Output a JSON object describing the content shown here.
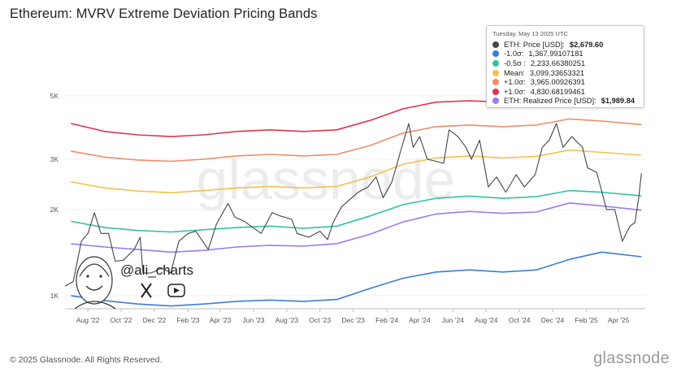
{
  "title": "Ethereum: MVRV Extreme Deviation Pricing Bands",
  "footer": "© 2025 Glassnode. All Rights Reserved.",
  "brand": "glassnode",
  "watermark": "glassnode",
  "handle": "@ali_charts",
  "legend": [
    {
      "label": "ETH: Price [USD]",
      "color": "#444444"
    },
    {
      "label": "-1.0σ",
      "color": "#3b7dd8"
    },
    {
      "label": "-0.5σ",
      "color": "#2ec4a0"
    },
    {
      "label": "Mean",
      "color": "#f2c14e"
    },
    {
      "label": "+1.0σ",
      "color": "#f28b65"
    },
    {
      "label": "+1.0σ",
      "color": "#e0344f"
    },
    {
      "label": "ETH: Realized Price [USD]",
      "color": "#9b7cf0"
    }
  ],
  "tooltip": {
    "date": "Tuesday, May 13 2025 UTC",
    "rows": [
      {
        "label": "ETH: Price [USD]:",
        "value": "$2,679.60",
        "bold": true,
        "color": "#444444"
      },
      {
        "label": "-1.0σ:",
        "value": "1,367.99107181",
        "bold": false,
        "color": "#3b7dd8"
      },
      {
        "label": "-0.5σ :",
        "value": "2,233.66380251",
        "bold": false,
        "color": "#2ec4a0"
      },
      {
        "label": "Mean:",
        "value": "3,099.33653321",
        "bold": false,
        "color": "#f2c14e"
      },
      {
        "label": "+1.0σ:",
        "value": "3,965.00926391",
        "bold": false,
        "color": "#f28b65"
      },
      {
        "label": "+1.0σ:",
        "value": "4,830.68199461",
        "bold": false,
        "color": "#e0344f"
      },
      {
        "label": "ETH: Realized Price [USD]:",
        "value": "$1,989.84",
        "bold": true,
        "color": "#9b7cf0"
      }
    ]
  },
  "chart_data": {
    "type": "line",
    "title": "Ethereum: MVRV Extreme Deviation Pricing Bands",
    "y_scale": "log",
    "ylim": [
      900,
      6000
    ],
    "y_ticks": [
      {
        "value": 1000,
        "label": "1K"
      },
      {
        "value": 2000,
        "label": "2K"
      },
      {
        "value": 3000,
        "label": "3K"
      },
      {
        "value": 5000,
        "label": "5K"
      }
    ],
    "x_range": [
      "2022-06-20",
      "2025-05-20"
    ],
    "x_ticks": [
      {
        "date": "2022-08-01",
        "label": "Aug '22"
      },
      {
        "date": "2022-10-01",
        "label": "Oct '22"
      },
      {
        "date": "2022-12-01",
        "label": "Dec '22"
      },
      {
        "date": "2023-02-01",
        "label": "Feb '23"
      },
      {
        "date": "2023-04-01",
        "label": "Apr '23"
      },
      {
        "date": "2023-06-01",
        "label": "Jun '23"
      },
      {
        "date": "2023-08-01",
        "label": "Aug '23"
      },
      {
        "date": "2023-10-01",
        "label": "Oct '23"
      },
      {
        "date": "2023-12-01",
        "label": "Dec '23"
      },
      {
        "date": "2024-02-01",
        "label": "Feb '24"
      },
      {
        "date": "2024-04-01",
        "label": "Apr '24"
      },
      {
        "date": "2024-06-01",
        "label": "Jun '24"
      },
      {
        "date": "2024-08-01",
        "label": "Aug '24"
      },
      {
        "date": "2024-10-01",
        "label": "Oct '24"
      },
      {
        "date": "2024-12-01",
        "label": "Dec '24"
      },
      {
        "date": "2025-02-01",
        "label": "Feb '25"
      },
      {
        "date": "2025-04-01",
        "label": "Apr '25"
      }
    ],
    "series": [
      {
        "name": "+1.0σ",
        "color": "#e0344f",
        "points": [
          [
            "2022-07-01",
            4000
          ],
          [
            "2022-09-01",
            3750
          ],
          [
            "2022-11-01",
            3650
          ],
          [
            "2023-01-01",
            3600
          ],
          [
            "2023-03-01",
            3650
          ],
          [
            "2023-05-01",
            3750
          ],
          [
            "2023-07-01",
            3800
          ],
          [
            "2023-09-01",
            3750
          ],
          [
            "2023-11-01",
            3800
          ],
          [
            "2024-01-01",
            4100
          ],
          [
            "2024-03-01",
            4500
          ],
          [
            "2024-05-01",
            4750
          ],
          [
            "2024-07-01",
            4800
          ],
          [
            "2024-09-01",
            4750
          ],
          [
            "2024-11-01",
            4800
          ],
          [
            "2025-01-01",
            5050
          ],
          [
            "2025-03-01",
            4950
          ],
          [
            "2025-05-13",
            4830
          ]
        ]
      },
      {
        "name": "+1.0σ",
        "color": "#f28b65",
        "points": [
          [
            "2022-07-01",
            3200
          ],
          [
            "2022-09-01",
            3050
          ],
          [
            "2022-11-01",
            2980
          ],
          [
            "2023-01-01",
            2950
          ],
          [
            "2023-03-01",
            3000
          ],
          [
            "2023-05-01",
            3080
          ],
          [
            "2023-07-01",
            3120
          ],
          [
            "2023-09-01",
            3080
          ],
          [
            "2023-11-01",
            3120
          ],
          [
            "2024-01-01",
            3350
          ],
          [
            "2024-03-01",
            3700
          ],
          [
            "2024-05-01",
            3900
          ],
          [
            "2024-07-01",
            3950
          ],
          [
            "2024-09-01",
            3900
          ],
          [
            "2024-11-01",
            3950
          ],
          [
            "2025-01-01",
            4150
          ],
          [
            "2025-03-01",
            4080
          ],
          [
            "2025-05-13",
            3965
          ]
        ]
      },
      {
        "name": "Mean",
        "color": "#f2c14e",
        "points": [
          [
            "2022-07-01",
            2500
          ],
          [
            "2022-09-01",
            2380
          ],
          [
            "2022-11-01",
            2320
          ],
          [
            "2023-01-01",
            2290
          ],
          [
            "2023-03-01",
            2330
          ],
          [
            "2023-05-01",
            2380
          ],
          [
            "2023-07-01",
            2410
          ],
          [
            "2023-09-01",
            2380
          ],
          [
            "2023-11-01",
            2410
          ],
          [
            "2024-01-01",
            2600
          ],
          [
            "2024-03-01",
            2880
          ],
          [
            "2024-05-01",
            3030
          ],
          [
            "2024-07-01",
            3080
          ],
          [
            "2024-09-01",
            3030
          ],
          [
            "2024-11-01",
            3070
          ],
          [
            "2025-01-01",
            3230
          ],
          [
            "2025-03-01",
            3170
          ],
          [
            "2025-05-13",
            3099
          ]
        ]
      },
      {
        "name": "-0.5σ",
        "color": "#2ec4a0",
        "points": [
          [
            "2022-07-01",
            1820
          ],
          [
            "2022-09-01",
            1730
          ],
          [
            "2022-11-01",
            1690
          ],
          [
            "2023-01-01",
            1670
          ],
          [
            "2023-03-01",
            1700
          ],
          [
            "2023-05-01",
            1730
          ],
          [
            "2023-07-01",
            1750
          ],
          [
            "2023-09-01",
            1720
          ],
          [
            "2023-11-01",
            1750
          ],
          [
            "2024-01-01",
            1900
          ],
          [
            "2024-03-01",
            2080
          ],
          [
            "2024-05-01",
            2190
          ],
          [
            "2024-07-01",
            2230
          ],
          [
            "2024-09-01",
            2190
          ],
          [
            "2024-11-01",
            2220
          ],
          [
            "2025-01-01",
            2330
          ],
          [
            "2025-03-01",
            2300
          ],
          [
            "2025-05-13",
            2234
          ]
        ]
      },
      {
        "name": "ETH: Realized Price [USD]",
        "color": "#9b7cf0",
        "points": [
          [
            "2022-07-01",
            1520
          ],
          [
            "2022-09-01",
            1480
          ],
          [
            "2022-11-01",
            1450
          ],
          [
            "2023-01-01",
            1420
          ],
          [
            "2023-03-01",
            1440
          ],
          [
            "2023-05-01",
            1480
          ],
          [
            "2023-07-01",
            1500
          ],
          [
            "2023-09-01",
            1490
          ],
          [
            "2023-11-01",
            1520
          ],
          [
            "2024-01-01",
            1640
          ],
          [
            "2024-03-01",
            1810
          ],
          [
            "2024-05-01",
            1930
          ],
          [
            "2024-07-01",
            1970
          ],
          [
            "2024-09-01",
            1940
          ],
          [
            "2024-11-01",
            1960
          ],
          [
            "2025-01-01",
            2110
          ],
          [
            "2025-03-01",
            2060
          ],
          [
            "2025-05-13",
            1990
          ]
        ]
      },
      {
        "name": "-1.0σ",
        "color": "#3b7dd8",
        "points": [
          [
            "2022-07-01",
            1000
          ],
          [
            "2022-09-01",
            960
          ],
          [
            "2022-11-01",
            935
          ],
          [
            "2023-01-01",
            920
          ],
          [
            "2023-03-01",
            935
          ],
          [
            "2023-05-01",
            955
          ],
          [
            "2023-07-01",
            965
          ],
          [
            "2023-09-01",
            955
          ],
          [
            "2023-11-01",
            970
          ],
          [
            "2024-01-01",
            1060
          ],
          [
            "2024-03-01",
            1150
          ],
          [
            "2024-05-01",
            1210
          ],
          [
            "2024-07-01",
            1230
          ],
          [
            "2024-09-01",
            1210
          ],
          [
            "2024-11-01",
            1230
          ],
          [
            "2025-01-01",
            1340
          ],
          [
            "2025-03-01",
            1420
          ],
          [
            "2025-05-13",
            1368
          ]
        ]
      },
      {
        "name": "ETH: Price [USD]",
        "color": "#444444",
        "points": [
          [
            "2022-06-20",
            1080
          ],
          [
            "2022-07-05",
            1120
          ],
          [
            "2022-07-20",
            1550
          ],
          [
            "2022-08-01",
            1650
          ],
          [
            "2022-08-13",
            1950
          ],
          [
            "2022-08-25",
            1650
          ],
          [
            "2022-09-08",
            1650
          ],
          [
            "2022-09-20",
            1320
          ],
          [
            "2022-10-05",
            1330
          ],
          [
            "2022-10-25",
            1450
          ],
          [
            "2022-11-05",
            1600
          ],
          [
            "2022-11-10",
            1200
          ],
          [
            "2022-11-25",
            1200
          ],
          [
            "2022-12-15",
            1250
          ],
          [
            "2022-12-31",
            1200
          ],
          [
            "2023-01-15",
            1550
          ],
          [
            "2023-02-01",
            1650
          ],
          [
            "2023-02-15",
            1680
          ],
          [
            "2023-03-10",
            1450
          ],
          [
            "2023-03-25",
            1780
          ],
          [
            "2023-04-15",
            2100
          ],
          [
            "2023-04-28",
            1880
          ],
          [
            "2023-05-15",
            1820
          ],
          [
            "2023-06-15",
            1650
          ],
          [
            "2023-07-05",
            1950
          ],
          [
            "2023-07-20",
            1900
          ],
          [
            "2023-08-10",
            1850
          ],
          [
            "2023-08-20",
            1650
          ],
          [
            "2023-09-10",
            1600
          ],
          [
            "2023-10-01",
            1680
          ],
          [
            "2023-10-15",
            1570
          ],
          [
            "2023-10-25",
            1800
          ],
          [
            "2023-11-10",
            2050
          ],
          [
            "2023-12-10",
            2300
          ],
          [
            "2023-12-28",
            2400
          ],
          [
            "2024-01-12",
            2600
          ],
          [
            "2024-01-25",
            2200
          ],
          [
            "2024-02-10",
            2500
          ],
          [
            "2024-02-28",
            3300
          ],
          [
            "2024-03-12",
            4000
          ],
          [
            "2024-03-20",
            3300
          ],
          [
            "2024-04-01",
            3600
          ],
          [
            "2024-04-15",
            3000
          ],
          [
            "2024-05-01",
            2950
          ],
          [
            "2024-05-15",
            2900
          ],
          [
            "2024-05-25",
            3800
          ],
          [
            "2024-06-10",
            3600
          ],
          [
            "2024-06-25",
            3300
          ],
          [
            "2024-07-05",
            3000
          ],
          [
            "2024-07-20",
            3500
          ],
          [
            "2024-08-05",
            2400
          ],
          [
            "2024-08-20",
            2600
          ],
          [
            "2024-09-06",
            2300
          ],
          [
            "2024-09-25",
            2650
          ],
          [
            "2024-10-10",
            2400
          ],
          [
            "2024-10-30",
            2650
          ],
          [
            "2024-11-12",
            3300
          ],
          [
            "2024-11-25",
            3500
          ],
          [
            "2024-12-08",
            4000
          ],
          [
            "2024-12-20",
            3300
          ],
          [
            "2025-01-05",
            3600
          ],
          [
            "2025-01-25",
            3300
          ],
          [
            "2025-02-03",
            2800
          ],
          [
            "2025-02-20",
            2700
          ],
          [
            "2025-03-10",
            2000
          ],
          [
            "2025-03-25",
            2000
          ],
          [
            "2025-04-08",
            1550
          ],
          [
            "2025-04-22",
            1750
          ],
          [
            "2025-05-01",
            1800
          ],
          [
            "2025-05-08",
            2200
          ],
          [
            "2025-05-13",
            2679.6
          ]
        ]
      }
    ]
  }
}
